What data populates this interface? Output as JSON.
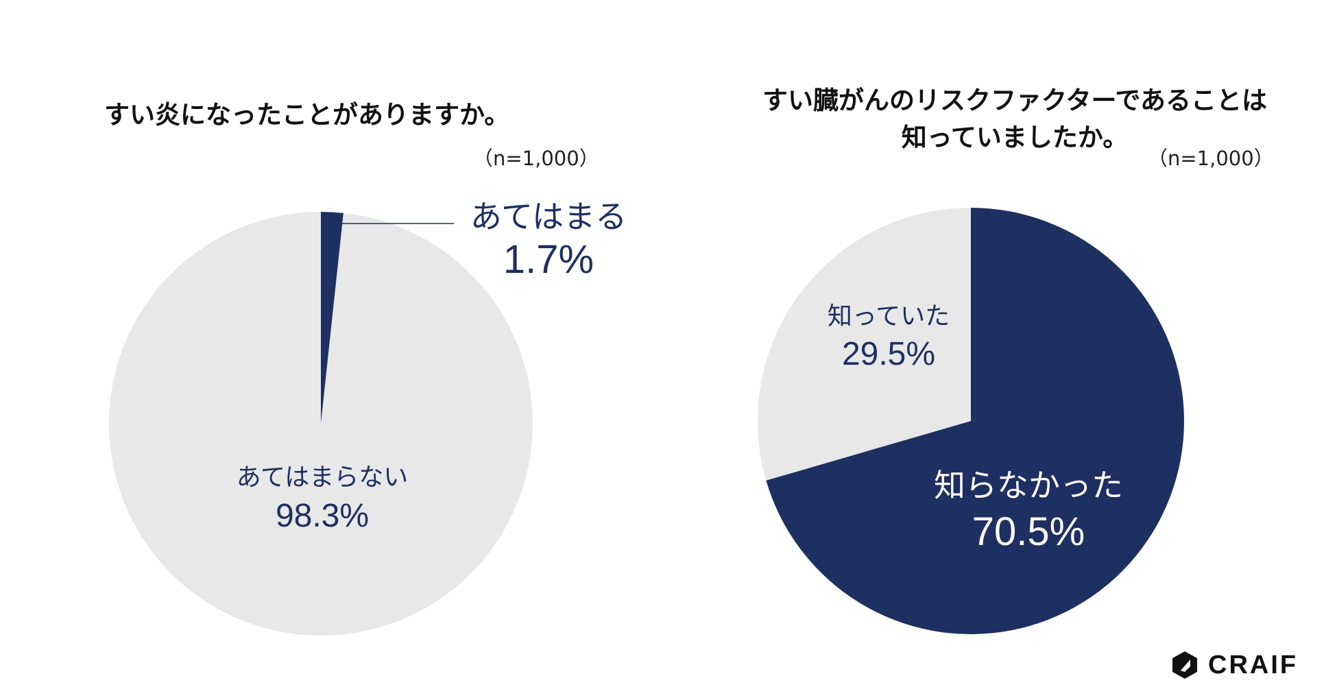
{
  "chart_data": [
    {
      "type": "pie",
      "title": "すい炎になったことがありますか。",
      "sample_size": "（n=1,000）",
      "slices": [
        {
          "label": "あてはまる",
          "value": 1.7,
          "display": "1.7%",
          "color": "#1e2f61"
        },
        {
          "label": "あてはまらない",
          "value": 98.3,
          "display": "98.3%",
          "color": "#e8e8e8"
        }
      ]
    },
    {
      "type": "pie",
      "title_lines": [
        "すい臓がんのリスクファクターであることは",
        "知っていましたか。"
      ],
      "sample_size": "（n=1,000）",
      "slices": [
        {
          "label": "知らなかった",
          "value": 70.5,
          "display": "70.5%",
          "color": "#1e2f61"
        },
        {
          "label": "知っていた",
          "value": 29.5,
          "display": "29.5%",
          "color": "#e8e8e8"
        }
      ]
    }
  ],
  "brand": {
    "name": "CRAIF"
  }
}
